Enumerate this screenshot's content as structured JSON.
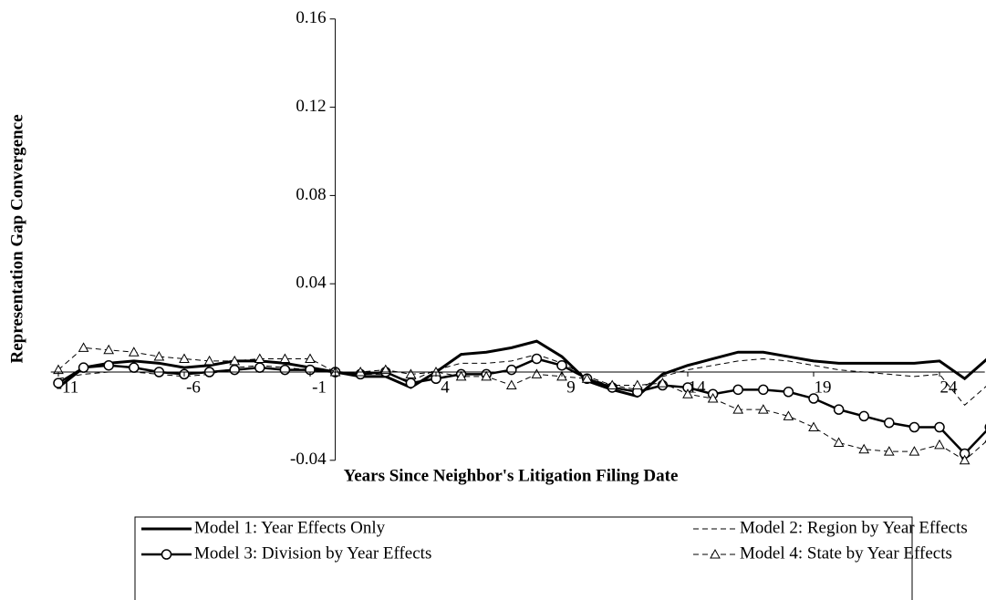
{
  "chart_data": {
    "type": "line",
    "xlabel": "Years Since Neighbor's Litigation Filing Date",
    "ylabel": "Representation Gap Convergence",
    "x": [
      -11,
      -10,
      -9,
      -8,
      -7,
      -6,
      -5,
      -4,
      -3,
      -2,
      -1,
      0,
      1,
      2,
      3,
      4,
      5,
      6,
      7,
      8,
      9,
      10,
      11,
      12,
      13,
      14,
      15,
      16,
      17,
      18,
      19,
      20,
      21,
      22,
      23,
      24,
      25,
      26
    ],
    "xlim": [
      -11.3,
      25.8
    ],
    "xticks": [
      -11,
      -6,
      -1,
      4,
      9,
      14,
      19,
      24
    ],
    "ylim": [
      -0.04,
      0.16
    ],
    "yticks": [
      -0.04,
      {
        "value": 0,
        "label": ""
      },
      0.04,
      0.08,
      0.12,
      0.16
    ],
    "series": [
      {
        "name": "Model 1: Year Effects Only",
        "color": "#000000",
        "width": 3,
        "dash": false,
        "marker": null,
        "values": [
          -0.007,
          0.002,
          0.004,
          0.005,
          0.004,
          0.002,
          0.003,
          0.005,
          0.005,
          0.004,
          0.002,
          0,
          -0.002,
          -0.002,
          -0.007,
          0.0,
          0.008,
          0.009,
          0.011,
          0.014,
          0.007,
          -0.004,
          -0.008,
          -0.011,
          -0.001,
          0.003,
          0.006,
          0.009,
          0.009,
          0.007,
          0.005,
          0.004,
          0.004,
          0.004,
          0.004,
          0.005,
          -0.003,
          0.007
        ]
      },
      {
        "name": "Model 2: Region by Year Effects",
        "color": "#000000",
        "width": 1,
        "dash": true,
        "marker": null,
        "values": [
          -0.003,
          -0.001,
          0,
          0,
          -0.001,
          -0.002,
          -0.001,
          0.002,
          0.003,
          0.002,
          0.001,
          0,
          -0.001,
          -0.001,
          -0.004,
          0.001,
          0.004,
          0.004,
          0.005,
          0.008,
          0.004,
          -0.002,
          -0.006,
          -0.008,
          -0.002,
          0.001,
          0.003,
          0.005,
          0.006,
          0.005,
          0.003,
          0.001,
          0,
          -0.001,
          -0.002,
          -0.001,
          -0.015,
          -0.005
        ]
      },
      {
        "name": "Model 3: Division by Year Effects",
        "color": "#000000",
        "width": 2.5,
        "dash": false,
        "marker": "circle",
        "values": [
          -0.005,
          0.002,
          0.003,
          0.002,
          0,
          -0.001,
          0,
          0.001,
          0.002,
          0.001,
          0.001,
          0,
          -0.001,
          0,
          -0.005,
          -0.003,
          -0.001,
          -0.001,
          0.001,
          0.006,
          0.003,
          -0.003,
          -0.007,
          -0.009,
          -0.006,
          -0.007,
          -0.01,
          -0.008,
          -0.008,
          -0.009,
          -0.012,
          -0.017,
          -0.02,
          -0.023,
          -0.025,
          -0.025,
          -0.037,
          -0.025
        ]
      },
      {
        "name": "Model 4: State by Year Effects",
        "color": "#000000",
        "width": 1,
        "dash": true,
        "marker": "triangle",
        "values": [
          0.001,
          0.011,
          0.01,
          0.009,
          0.007,
          0.006,
          0.005,
          0.005,
          0.006,
          0.006,
          0.006,
          0,
          0,
          0.001,
          -0.001,
          0.0,
          -0.002,
          -0.002,
          -0.006,
          -0.001,
          -0.002,
          -0.003,
          -0.006,
          -0.006,
          -0.005,
          -0.01,
          -0.012,
          -0.017,
          -0.017,
          -0.02,
          -0.025,
          -0.032,
          -0.035,
          -0.036,
          -0.036,
          -0.033,
          -0.04,
          -0.03
        ]
      }
    ]
  }
}
